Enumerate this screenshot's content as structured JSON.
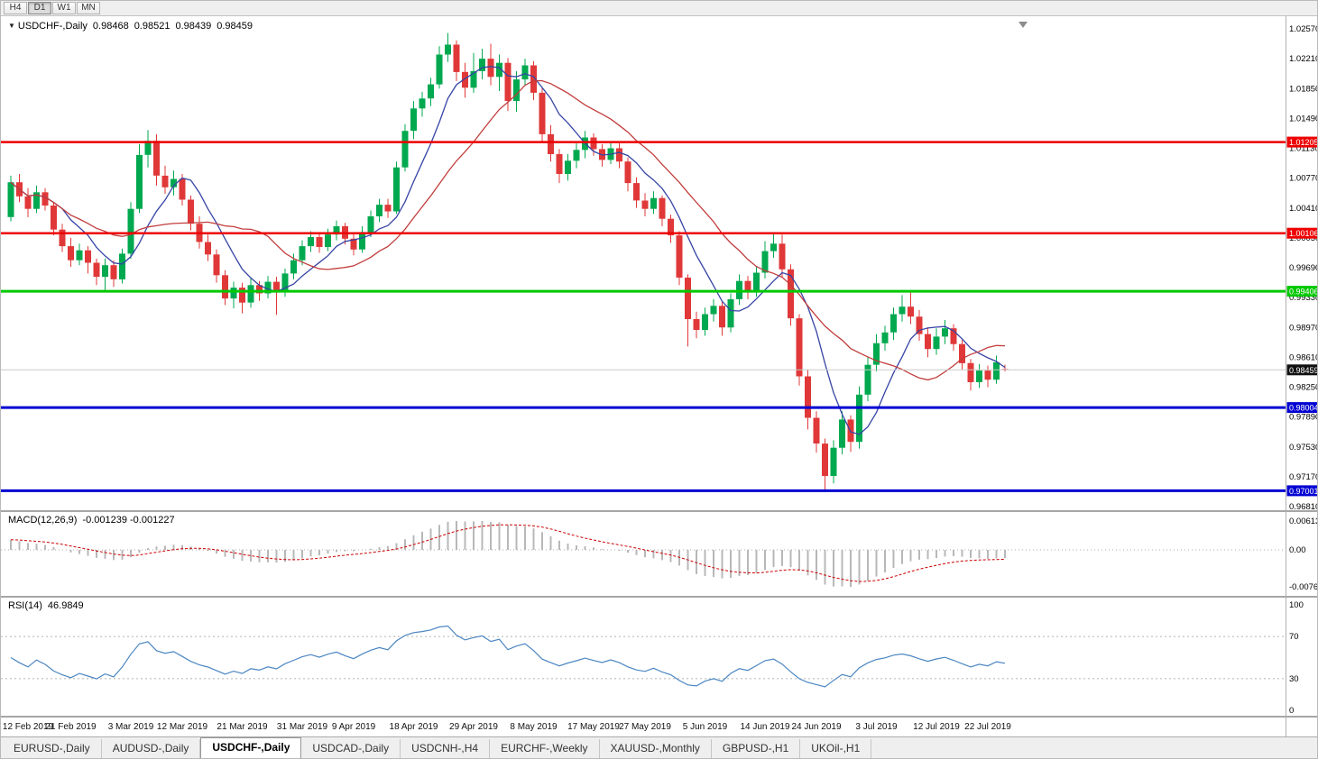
{
  "toolbar": {
    "timeframes": [
      {
        "label": "H4",
        "active": false
      },
      {
        "label": "D1",
        "active": true
      },
      {
        "label": "W1",
        "active": false
      },
      {
        "label": "MN",
        "active": false
      }
    ]
  },
  "chart_data": {
    "type": "candlestick",
    "symbol": "USDCHF",
    "timeframe": "Daily",
    "symbol_label": "USDCHF-,Daily",
    "ohlc_display": {
      "open": "0.98468",
      "high": "0.98521",
      "low": "0.98439",
      "close": "0.98459"
    },
    "candle_colors": {
      "up": "#00a94f",
      "down": "#e03838"
    },
    "y_axis": {
      "top": 1.0257,
      "bottom": 0.9681,
      "tick_labels": [
        "1.02570",
        "1.02210",
        "1.01850",
        "1.01490",
        "1.01130",
        "1.00770",
        "1.00410",
        "1.00050",
        "0.99690",
        "0.99330",
        "0.98970",
        "0.98610",
        "0.98250",
        "0.97890",
        "0.97530",
        "0.97170",
        "0.96810"
      ]
    },
    "x_axis": {
      "ticks": [
        {
          "i": 0,
          "label": "12 Feb 2019"
        },
        {
          "i": 7,
          "label": "21 Feb 2019"
        },
        {
          "i": 14,
          "label": "3 Mar 2019"
        },
        {
          "i": 20,
          "label": "12 Mar 2019"
        },
        {
          "i": 27,
          "label": "21 Mar 2019"
        },
        {
          "i": 34,
          "label": "31 Mar 2019"
        },
        {
          "i": 40,
          "label": "9 Apr 2019"
        },
        {
          "i": 47,
          "label": "18 Apr 2019"
        },
        {
          "i": 54,
          "label": "29 Apr 2019"
        },
        {
          "i": 61,
          "label": "8 May 2019"
        },
        {
          "i": 68,
          "label": "17 May 2019"
        },
        {
          "i": 74,
          "label": "27 May 2019"
        },
        {
          "i": 81,
          "label": "5 Jun 2019"
        },
        {
          "i": 88,
          "label": "14 Jun 2019"
        },
        {
          "i": 94,
          "label": "24 Jun 2019"
        },
        {
          "i": 101,
          "label": "3 Jul 2019"
        },
        {
          "i": 108,
          "label": "12 Jul 2019"
        },
        {
          "i": 114,
          "label": "22 Jul 2019"
        }
      ]
    },
    "candles": [
      [
        1.003,
        1.008,
        1.0025,
        1.0072
      ],
      [
        1.0072,
        1.0082,
        1.0048,
        1.0055
      ],
      [
        1.0055,
        1.0065,
        1.003,
        1.004
      ],
      [
        1.004,
        1.0068,
        1.0035,
        1.006
      ],
      [
        1.006,
        1.0065,
        1.0038,
        1.0044
      ],
      [
        1.0044,
        1.0048,
        1.0008,
        1.0015
      ],
      [
        1.0015,
        1.0022,
        0.9988,
        0.9995
      ],
      [
        0.9995,
        1.0005,
        0.997,
        0.9978
      ],
      [
        0.9978,
        0.9998,
        0.9972,
        0.999
      ],
      [
        0.999,
        0.9995,
        0.9962,
        0.9975
      ],
      [
        0.9975,
        0.998,
        0.9948,
        0.9958
      ],
      [
        0.9958,
        0.998,
        0.994,
        0.9972
      ],
      [
        0.9972,
        0.9978,
        0.9946,
        0.9955
      ],
      [
        0.9955,
        0.9992,
        0.995,
        0.9986
      ],
      [
        0.9986,
        1.0048,
        0.998,
        1.004
      ],
      [
        1.004,
        1.0118,
        1.0035,
        1.0105
      ],
      [
        1.0105,
        1.0135,
        1.009,
        1.0122
      ],
      [
        1.0122,
        1.013,
        1.0068,
        1.008
      ],
      [
        1.008,
        1.0092,
        1.0058,
        1.0066
      ],
      [
        1.0066,
        1.0086,
        1.0056,
        1.0076
      ],
      [
        1.0076,
        1.0082,
        1.0044,
        1.0051
      ],
      [
        1.0051,
        1.0056,
        1.0014,
        1.0022
      ],
      [
        1.0022,
        1.0031,
        0.9992,
        1.0
      ],
      [
        1.0,
        1.0009,
        0.9977,
        0.9985
      ],
      [
        0.9985,
        0.9991,
        0.9951,
        0.996
      ],
      [
        0.996,
        0.9966,
        0.9924,
        0.9932
      ],
      [
        0.9932,
        0.9952,
        0.992,
        0.9945
      ],
      [
        0.9945,
        0.9951,
        0.9914,
        0.9927
      ],
      [
        0.9927,
        0.9956,
        0.9921,
        0.9948
      ],
      [
        0.9948,
        0.9953,
        0.9929,
        0.9938
      ],
      [
        0.9938,
        0.9959,
        0.9932,
        0.9952
      ],
      [
        0.9952,
        0.9958,
        0.9912,
        0.994
      ],
      [
        0.994,
        0.9968,
        0.9934,
        0.9962
      ],
      [
        0.9962,
        0.9986,
        0.9955,
        0.9978
      ],
      [
        0.9978,
        1.0002,
        0.9972,
        0.9995
      ],
      [
        0.9995,
        1.0013,
        0.9988,
        1.0006
      ],
      [
        1.0006,
        1.0011,
        0.9987,
        0.9994
      ],
      [
        0.9994,
        1.0016,
        0.9989,
        1.0009
      ],
      [
        1.0009,
        1.0026,
        1.0002,
        1.0019
      ],
      [
        1.0019,
        1.0023,
        0.9997,
        1.0004
      ],
      [
        1.0004,
        1.001,
        0.9984,
        0.9991
      ],
      [
        0.9991,
        1.0019,
        0.9987,
        1.0012
      ],
      [
        1.0012,
        1.0038,
        1.0006,
        1.0031
      ],
      [
        1.0031,
        1.0052,
        1.0024,
        1.0045
      ],
      [
        1.0045,
        1.0052,
        1.0029,
        1.0037
      ],
      [
        1.0037,
        1.0097,
        1.0034,
        1.009
      ],
      [
        1.009,
        1.0142,
        1.0085,
        1.0134
      ],
      [
        1.0134,
        1.017,
        1.0124,
        1.0161
      ],
      [
        1.0161,
        1.0181,
        1.0151,
        1.0173
      ],
      [
        1.0173,
        1.0198,
        1.0164,
        1.019
      ],
      [
        1.019,
        1.0236,
        1.0185,
        1.0226
      ],
      [
        1.0226,
        1.0252,
        1.0217,
        1.0238
      ],
      [
        1.0238,
        1.0243,
        1.0194,
        1.0205
      ],
      [
        1.0205,
        1.0216,
        1.0174,
        1.0186
      ],
      [
        1.0186,
        1.0228,
        1.018,
        1.0206
      ],
      [
        1.0206,
        1.0233,
        1.0196,
        1.0221
      ],
      [
        1.0221,
        1.0239,
        1.0189,
        1.0199
      ],
      [
        1.0199,
        1.0226,
        1.0182,
        1.0216
      ],
      [
        1.0216,
        1.0222,
        1.0158,
        1.017
      ],
      [
        1.017,
        1.0206,
        1.0157,
        1.0196
      ],
      [
        1.0196,
        1.0221,
        1.0188,
        1.0213
      ],
      [
        1.0213,
        1.0218,
        1.0171,
        1.018
      ],
      [
        1.018,
        1.0186,
        1.0121,
        1.013
      ],
      [
        1.013,
        1.0141,
        1.0097,
        1.0106
      ],
      [
        1.0106,
        1.0112,
        1.0071,
        1.0082
      ],
      [
        1.0082,
        1.0106,
        1.0074,
        1.0098
      ],
      [
        1.0098,
        1.0119,
        1.0089,
        1.0111
      ],
      [
        1.0111,
        1.0134,
        1.0101,
        1.0126
      ],
      [
        1.0126,
        1.0131,
        1.0104,
        1.0112
      ],
      [
        1.0112,
        1.0118,
        1.0091,
        1.0099
      ],
      [
        1.0099,
        1.0121,
        1.0094,
        1.0113
      ],
      [
        1.0113,
        1.0119,
        1.0089,
        1.0097
      ],
      [
        1.0097,
        1.0102,
        1.0061,
        1.0071
      ],
      [
        1.0071,
        1.0078,
        1.0041,
        1.005
      ],
      [
        1.005,
        1.0059,
        1.0031,
        1.004
      ],
      [
        1.004,
        1.0061,
        1.0034,
        1.0053
      ],
      [
        1.0053,
        1.0056,
        1.0019,
        1.0028
      ],
      [
        1.0028,
        1.0033,
        0.9999,
        1.0008
      ],
      [
        1.0008,
        1.0013,
        0.9948,
        0.9957
      ],
      [
        0.9957,
        0.9961,
        0.9874,
        0.9907
      ],
      [
        0.9907,
        0.9916,
        0.9884,
        0.9894
      ],
      [
        0.9894,
        0.9921,
        0.9887,
        0.9913
      ],
      [
        0.9913,
        0.9931,
        0.9904,
        0.9923
      ],
      [
        0.9923,
        0.9929,
        0.9887,
        0.9897
      ],
      [
        0.9897,
        0.9938,
        0.9891,
        0.9931
      ],
      [
        0.9931,
        0.9961,
        0.9924,
        0.9953
      ],
      [
        0.9953,
        0.9959,
        0.9931,
        0.994
      ],
      [
        0.994,
        0.9971,
        0.9934,
        0.9963
      ],
      [
        0.9963,
        1.0001,
        0.9956,
        0.9989
      ],
      [
        0.9989,
        1.001,
        0.9981,
        0.9998
      ],
      [
        0.9998,
        1.0009,
        0.9958,
        0.9967
      ],
      [
        0.9967,
        0.9973,
        0.9899,
        0.9908
      ],
      [
        0.9908,
        0.9913,
        0.9827,
        0.9838
      ],
      [
        0.9838,
        0.9846,
        0.9774,
        0.9788
      ],
      [
        0.9788,
        0.9796,
        0.9746,
        0.9757
      ],
      [
        0.9757,
        0.9763,
        0.97,
        0.9718
      ],
      [
        0.9718,
        0.9761,
        0.9709,
        0.9752
      ],
      [
        0.9752,
        0.9796,
        0.9744,
        0.9786
      ],
      [
        0.9786,
        0.9791,
        0.9747,
        0.9759
      ],
      [
        0.9759,
        0.9826,
        0.9751,
        0.9816
      ],
      [
        0.9816,
        0.9861,
        0.9808,
        0.9852
      ],
      [
        0.9852,
        0.9889,
        0.9844,
        0.9878
      ],
      [
        0.9878,
        0.9899,
        0.9869,
        0.9891
      ],
      [
        0.9891,
        0.9921,
        0.9882,
        0.9913
      ],
      [
        0.9913,
        0.9936,
        0.9904,
        0.9922
      ],
      [
        0.9922,
        0.9939,
        0.9901,
        0.991
      ],
      [
        0.991,
        0.9918,
        0.9881,
        0.9889
      ],
      [
        0.9889,
        0.9897,
        0.9861,
        0.9871
      ],
      [
        0.9871,
        0.9896,
        0.9864,
        0.9886
      ],
      [
        0.9886,
        0.9906,
        0.9877,
        0.9896
      ],
      [
        0.9896,
        0.9901,
        0.9869,
        0.9877
      ],
      [
        0.9877,
        0.9882,
        0.9846,
        0.9854
      ],
      [
        0.9854,
        0.9859,
        0.9821,
        0.9831
      ],
      [
        0.9831,
        0.9853,
        0.9824,
        0.9845
      ],
      [
        0.9845,
        0.9851,
        0.9825,
        0.9834
      ],
      [
        0.9834,
        0.9863,
        0.9829,
        0.9855
      ],
      [
        0.98468,
        0.98521,
        0.98439,
        0.98459
      ]
    ],
    "moving_averages": [
      {
        "name": "fast",
        "period": 7,
        "color": "#3644a5"
      },
      {
        "name": "slow",
        "period": 16,
        "color": "#c23c3c"
      }
    ],
    "levels": [
      {
        "price": 1.01205,
        "label": "1.01205",
        "color": "#ee0000",
        "width": 2.5
      },
      {
        "price": 1.00106,
        "label": "1.00106",
        "color": "#ee0000",
        "width": 2.5
      },
      {
        "price": 0.99406,
        "label": "0.99406",
        "color": "#00c800",
        "width": 3
      },
      {
        "price": 0.98004,
        "label": "0.98004",
        "color": "#0000d2",
        "width": 3
      },
      {
        "price": 0.97001,
        "label": "0.97001",
        "color": "#0000d2",
        "width": 3
      }
    ],
    "current_price": {
      "value": 0.98459,
      "label": "0.98459",
      "line_color": "#c8c8c8",
      "badge_bg": "#111111"
    },
    "indicators": [
      {
        "type": "MACD",
        "label": "MACD(12,26,9)",
        "display_values": "-0.001239 -0.001227",
        "fast": 12,
        "slow": 26,
        "signal_period": 9,
        "tick_labels": [
          "0.00613",
          "0.00",
          "-0.00761"
        ],
        "histogram_color": "#b8b8b8",
        "signal_color": "#cc0000"
      },
      {
        "type": "RSI",
        "label": "RSI(14)",
        "display_value": "46.9849",
        "period": 14,
        "levels": [
          70,
          30
        ],
        "tick_labels": [
          "100",
          "70",
          "30",
          "0"
        ],
        "line_color": "#4b86c2"
      }
    ]
  },
  "tabs": {
    "active_index": 2,
    "items": [
      "EURUSD-,Daily",
      "AUDUSD-,Daily",
      "USDCHF-,Daily",
      "USDCAD-,Daily",
      "USDCNH-,H4",
      "EURCHF-,Weekly",
      "XAUUSD-,Monthly",
      "GBPUSD-,H1",
      "UKOil-,H1"
    ]
  }
}
